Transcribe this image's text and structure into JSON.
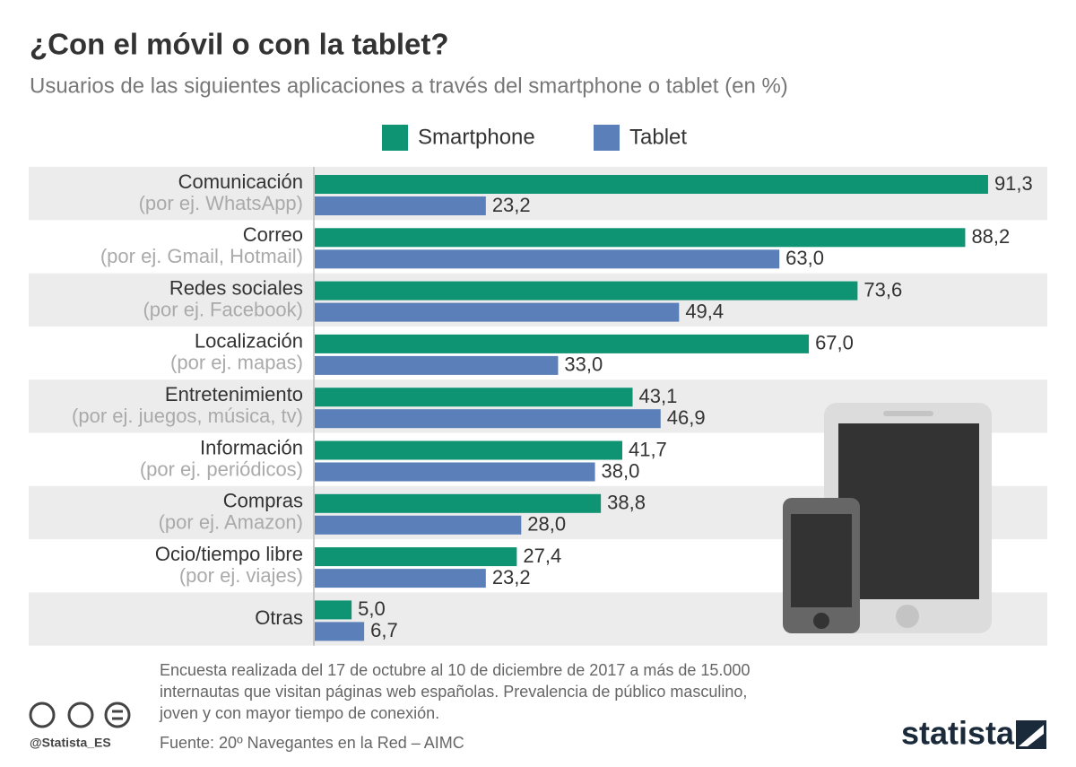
{
  "chart_data": {
    "type": "bar",
    "orientation": "horizontal",
    "title": "¿Con el móvil o con la tablet?",
    "subtitle": "Usuarios de las siguientes aplicaciones a través del smartphone o tablet (en %)",
    "categories": [
      "Comunicación",
      "Correo",
      "Redes sociales",
      "Localización",
      "Entretenimiento",
      "Información",
      "Compras",
      "Ocio/tiempo libre",
      "Otras"
    ],
    "sublabels": [
      "(por ej. WhatsApp)",
      "(por ej. Gmail, Hotmail)",
      "(por ej. Facebook)",
      "(por ej. mapas)",
      "(por ej. juegos, música, tv)",
      "(por ej. periódicos)",
      "(por ej. Amazon)",
      "(por ej. viajes)",
      null
    ],
    "series": [
      {
        "name": "Smartphone",
        "color": "#0e9373",
        "values": [
          91.3,
          88.2,
          73.6,
          67.0,
          43.1,
          41.7,
          38.8,
          27.4,
          5.0
        ],
        "value_labels": [
          "91,3",
          "88,2",
          "73,6",
          "67,0",
          "43,1",
          "41,7",
          "38,8",
          "27,4",
          "5,0"
        ]
      },
      {
        "name": "Tablet",
        "color": "#5b7fb8",
        "values": [
          23.2,
          63.0,
          49.4,
          33.0,
          46.9,
          38.0,
          28.0,
          23.2,
          6.7
        ],
        "value_labels": [
          "23,2",
          "63,0",
          "49,4",
          "33,0",
          "46,9",
          "38,0",
          "28,0",
          "23,2",
          "6,7"
        ]
      }
    ],
    "note": [
      "Encuesta realizada del 17 de octubre al 10 de diciembre de 2017 a más de 15.000",
      "internautas que visitan páginas web españolas. Prevalencia de público masculino,",
      "joven y con mayor tiempo de conexión."
    ],
    "source": "Fuente: 20º Navegantes en la Red – AIMC",
    "credit": "@Statista_ES",
    "brand": "statista"
  }
}
